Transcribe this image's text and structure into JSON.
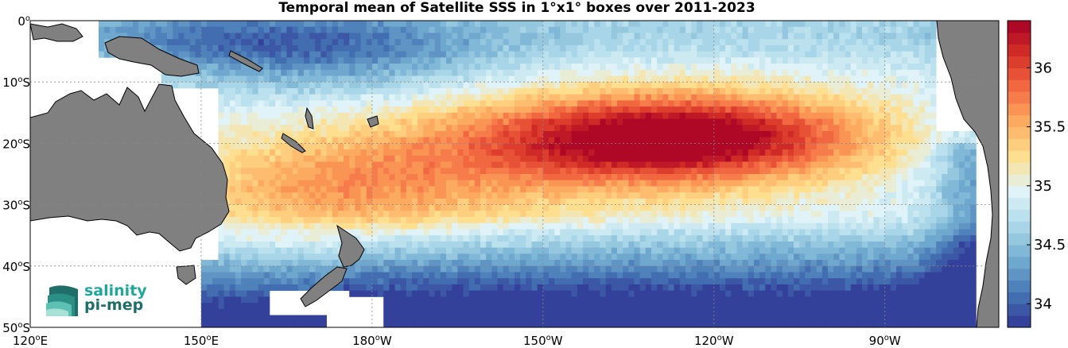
{
  "title": "Temporal mean of Satellite SSS in 1°x1° boxes over 2011-2023",
  "map": {
    "region": "South Pacific",
    "lon_range": [
      120,
      290
    ],
    "lat_range": [
      -50,
      0
    ],
    "gridlines": "dotted",
    "land_color": "#808080",
    "missing_color": "#ffffff"
  },
  "axes": {
    "x_ticks": [
      {
        "lon": 120,
        "value": "120",
        "hemi": "E"
      },
      {
        "lon": 150,
        "value": "150",
        "hemi": "E"
      },
      {
        "lon": 180,
        "value": "180",
        "hemi": "W"
      },
      {
        "lon": 210,
        "value": "150",
        "hemi": "W"
      },
      {
        "lon": 240,
        "value": "120",
        "hemi": "W"
      },
      {
        "lon": 270,
        "value": "90",
        "hemi": "W"
      }
    ],
    "y_ticks": [
      {
        "lat": 0,
        "value": "0",
        "hemi": ""
      },
      {
        "lat": -10,
        "value": "10",
        "hemi": "S"
      },
      {
        "lat": -20,
        "value": "20",
        "hemi": "S"
      },
      {
        "lat": -30,
        "value": "30",
        "hemi": "S"
      },
      {
        "lat": -40,
        "value": "40",
        "hemi": "S"
      },
      {
        "lat": -50,
        "value": "50",
        "hemi": "S"
      }
    ]
  },
  "colorbar": {
    "min": 33.8,
    "max": 36.4,
    "step": 0.1,
    "ticks": [
      "34",
      "34.5",
      "35",
      "35.5",
      "36"
    ],
    "colormap": "RdYlBu_r",
    "colors": [
      "#313695",
      "#4575b4",
      "#74add1",
      "#abd9e9",
      "#e0f3f8",
      "#fee090",
      "#fdae61",
      "#f46d43",
      "#d73027",
      "#a50026"
    ]
  },
  "logo": {
    "line1": "salinity",
    "line2": "pi-mep"
  }
}
